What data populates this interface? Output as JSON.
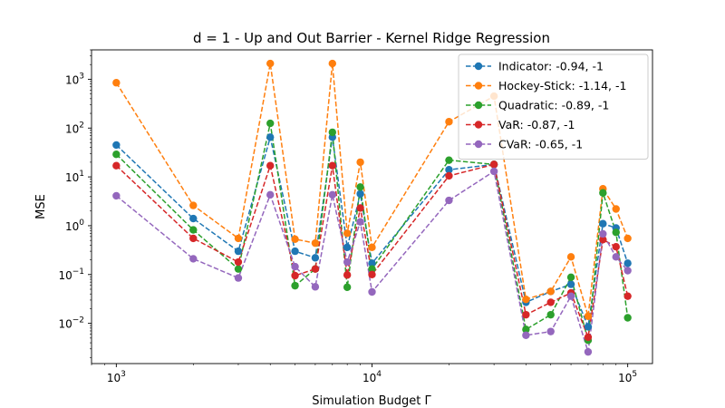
{
  "chart_data": {
    "type": "line",
    "title": "d = 1 - Up and Out Barrier - Kernel Ridge Regression",
    "xlabel": "Simulation Budget Γ",
    "ylabel": "MSE",
    "xscale": "log",
    "yscale": "log",
    "xlim": [
      800,
      125000
    ],
    "ylim": [
      0.0015,
      4000
    ],
    "x_ticks": [
      {
        "value": 1000,
        "base": "10",
        "exp": "3"
      },
      {
        "value": 10000,
        "base": "10",
        "exp": "4"
      },
      {
        "value": 100000,
        "base": "10",
        "exp": "5"
      }
    ],
    "y_ticks": [
      {
        "value": 0.01,
        "base": "10",
        "exp": "−2"
      },
      {
        "value": 0.1,
        "base": "10",
        "exp": "−1"
      },
      {
        "value": 1,
        "base": "10",
        "exp": "0"
      },
      {
        "value": 10,
        "base": "10",
        "exp": "1"
      },
      {
        "value": 100,
        "base": "10",
        "exp": "2"
      },
      {
        "value": 1000,
        "base": "10",
        "exp": "3"
      }
    ],
    "grid": false,
    "legend_position": "top-right",
    "x": [
      1000,
      2000,
      3000,
      4000,
      5000,
      6000,
      7000,
      8000,
      9000,
      10000,
      20000,
      30000,
      40000,
      50000,
      60000,
      70000,
      80000,
      90000,
      100000
    ],
    "series": [
      {
        "name": "Indicator: -0.94, -1",
        "color": "#1f77b4",
        "values": [
          45,
          1.4,
          0.3,
          65,
          0.3,
          0.22,
          65,
          0.36,
          4.5,
          0.17,
          14,
          18,
          0.027,
          0.045,
          0.063,
          0.0085,
          1.1,
          0.9,
          0.17
        ]
      },
      {
        "name": "Hockey-Stick: -1.14, -1",
        "color": "#ff7f0e",
        "values": [
          850,
          2.6,
          0.55,
          2100,
          0.53,
          0.44,
          2100,
          0.7,
          20,
          0.36,
          135,
          450,
          0.031,
          0.045,
          0.23,
          0.014,
          5.7,
          2.2,
          0.55
        ]
      },
      {
        "name": "Quadratic: -0.89, -1",
        "color": "#2ca02c",
        "values": [
          29,
          0.82,
          0.13,
          125,
          0.059,
          0.13,
          82,
          0.055,
          6.2,
          0.13,
          22,
          18,
          0.0075,
          0.015,
          0.088,
          0.0045,
          4.7,
          0.73,
          0.013
        ]
      },
      {
        "name": "VaR: -0.87, -1",
        "color": "#d62728",
        "values": [
          17,
          0.55,
          0.18,
          17,
          0.095,
          0.13,
          17,
          0.098,
          2.3,
          0.1,
          10.5,
          18,
          0.015,
          0.027,
          0.042,
          0.0052,
          0.52,
          0.37,
          0.036
        ]
      },
      {
        "name": "CVaR: -0.65, -1",
        "color": "#9467bd",
        "values": [
          4.1,
          0.21,
          0.085,
          4.3,
          0.145,
          0.056,
          4.3,
          0.18,
          1.2,
          0.044,
          3.3,
          13,
          0.0057,
          0.0068,
          0.036,
          0.0026,
          0.68,
          0.23,
          0.12
        ]
      }
    ]
  }
}
